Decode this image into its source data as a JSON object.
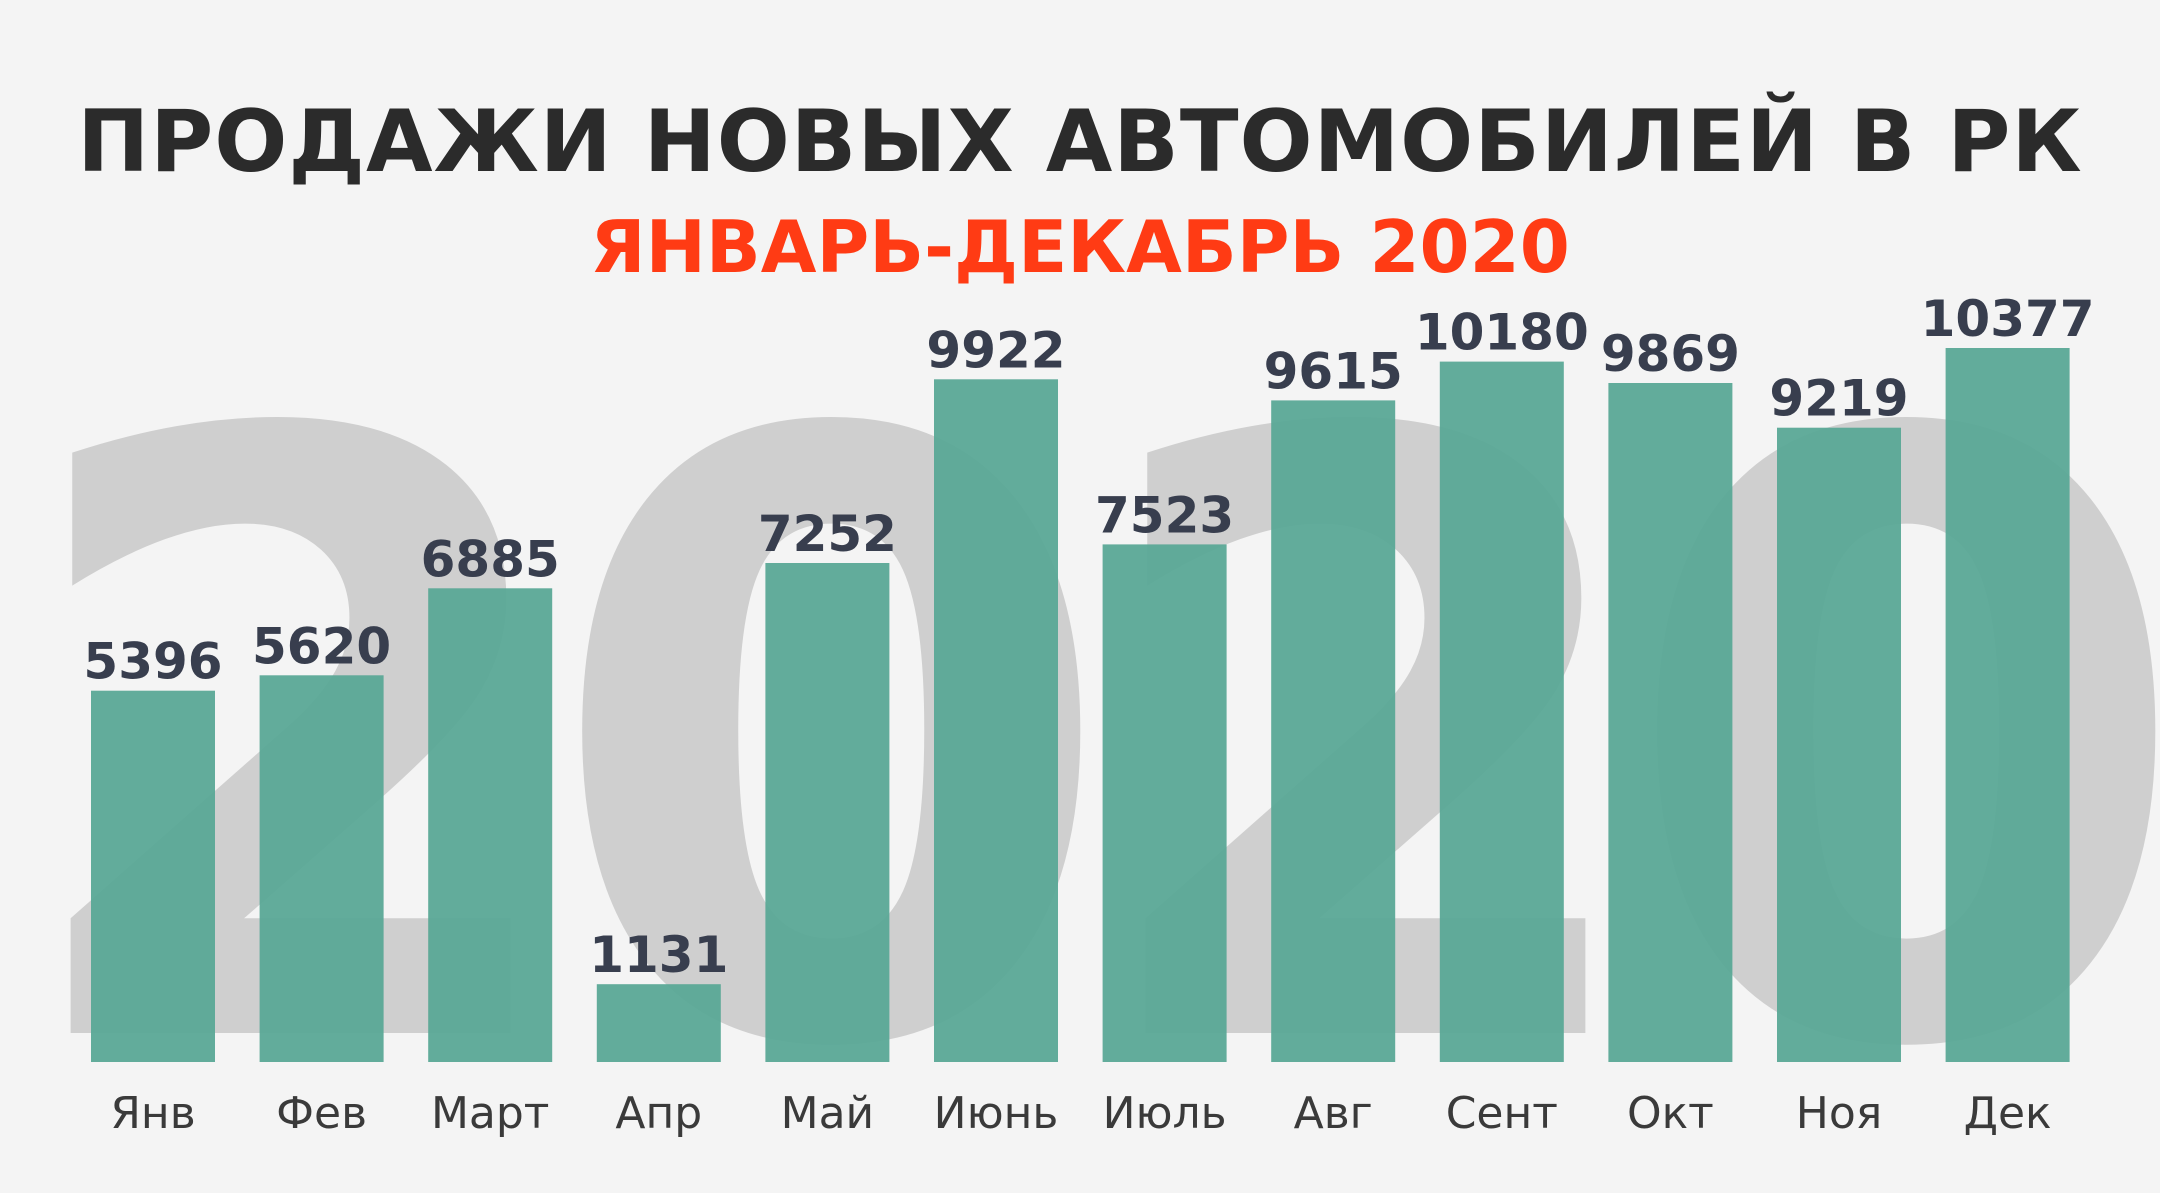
{
  "title": "ПРОДАЖИ НОВЫХ АВТОМОБИЛЕЙ В РК",
  "subtitle": "ЯНВАРЬ-ДЕКАБРЬ 2020",
  "watermark": "2020",
  "colors": {
    "background": "#f4f4f4",
    "title": "#2b2b2b",
    "subtitle": "#ff3b14",
    "bar": "#5aa896",
    "value_label": "#383e4e",
    "category_label": "#3a3a3a",
    "watermark": "#c8c8c8"
  },
  "chart_data": {
    "type": "bar",
    "title": "ПРОДАЖИ НОВЫХ АВТОМОБИЛЕЙ В РК",
    "subtitle": "ЯНВАРЬ-ДЕКАБРЬ 2020",
    "categories": [
      "Янв",
      "Фев",
      "Март",
      "Апр",
      "Май",
      "Июнь",
      "Июль",
      "Авг",
      "Сент",
      "Окт",
      "Ноя",
      "Дек"
    ],
    "values": [
      5396,
      5620,
      6885,
      1131,
      7252,
      9922,
      7523,
      9615,
      10180,
      9869,
      9219,
      10377
    ],
    "data_labels": [
      "5396",
      "5620",
      "6885",
      "1131",
      "7252",
      "9922",
      "7523",
      "9615",
      "10180",
      "9869",
      "9219",
      "10377"
    ],
    "xlabel": "",
    "ylabel": "",
    "ylim": [
      0,
      14000
    ],
    "grid": false,
    "legend": "none"
  }
}
